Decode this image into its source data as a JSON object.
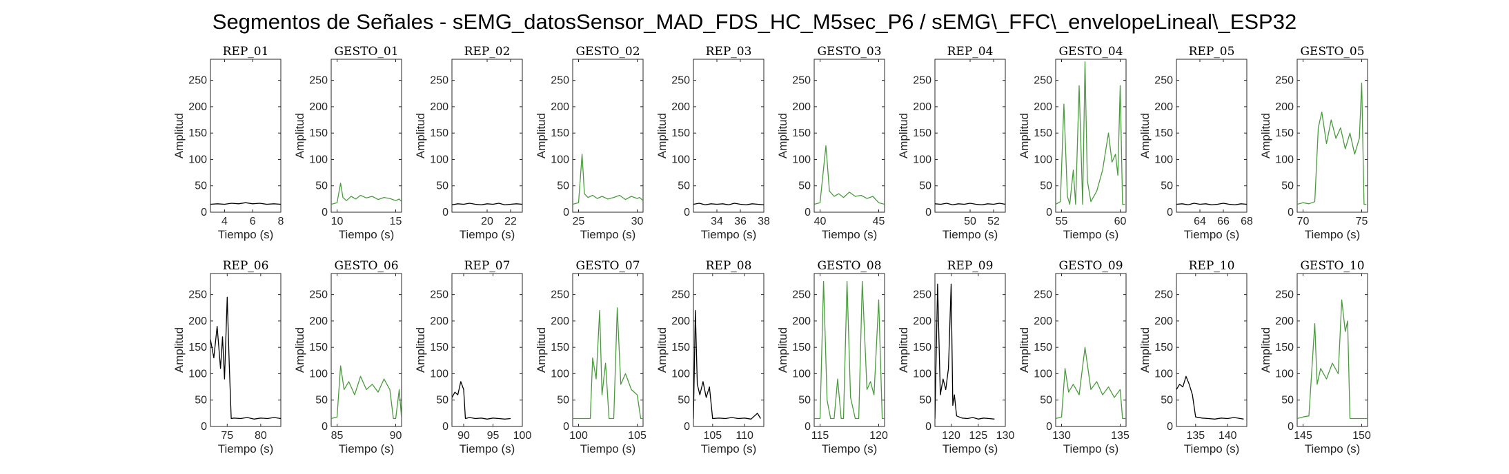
{
  "chart_data": {
    "type": "line",
    "title": "Segmentos de Señales - sEMG_datosSensor_MAD_FDS_HC_M5sec_P6 / sEMG\\_FFC\\_envelopeLineal\\_ESP32",
    "xlabel": "Tiempo (s)",
    "ylabel": "Amplitud",
    "ylim": [
      0,
      290
    ],
    "yticks": [
      0,
      50,
      100,
      150,
      200,
      250
    ],
    "grid": false,
    "colors": {
      "rep": "#000000",
      "gesto": "#4a9a3e",
      "axis": "#262626"
    },
    "subplots": [
      {
        "title": "REP_01",
        "kind": "rep",
        "xlim": [
          3,
          8
        ],
        "xticks": [
          4,
          6,
          8
        ],
        "series": [
          {
            "x": [
              3,
              3.5,
              4,
              4.5,
              5,
              5.5,
              6,
              6.5,
              7,
              7.5,
              8
            ],
            "y": [
              15,
              16,
              15,
              17,
              16,
              18,
              16,
              17,
              15,
              16,
              15
            ]
          }
        ]
      },
      {
        "title": "GESTO_01",
        "kind": "gesto",
        "xlim": [
          9.5,
          15.5
        ],
        "xticks": [
          10,
          15
        ],
        "series": [
          {
            "x": [
              9.5,
              10,
              10.3,
              10.5,
              10.8,
              11.2,
              11.6,
              12,
              12.5,
              13,
              13.5,
              14,
              14.5,
              15,
              15.3,
              15.5
            ],
            "y": [
              15,
              18,
              55,
              28,
              22,
              30,
              25,
              32,
              27,
              30,
              24,
              28,
              26,
              22,
              25,
              20
            ]
          }
        ]
      },
      {
        "title": "REP_02",
        "kind": "rep",
        "xlim": [
          17,
          23
        ],
        "xticks": [
          20,
          22
        ],
        "series": [
          {
            "x": [
              17,
              17.5,
              18,
              18.5,
              19,
              19.5,
              20,
              20.5,
              21,
              21.5,
              22,
              22.5,
              23
            ],
            "y": [
              14,
              16,
              15,
              17,
              15,
              14,
              16,
              15,
              17,
              14,
              15,
              16,
              15
            ]
          }
        ]
      },
      {
        "title": "GESTO_02",
        "kind": "gesto",
        "xlim": [
          24.5,
          30.5
        ],
        "xticks": [
          25,
          30
        ],
        "series": [
          {
            "x": [
              24.5,
              25,
              25.3,
              25.5,
              25.8,
              26.2,
              26.6,
              27,
              27.5,
              28,
              28.5,
              29,
              29.5,
              30,
              30.2,
              30.5
            ],
            "y": [
              15,
              18,
              110,
              35,
              28,
              32,
              26,
              30,
              25,
              28,
              32,
              24,
              30,
              26,
              28,
              22
            ]
          }
        ]
      },
      {
        "title": "REP_03",
        "kind": "rep",
        "xlim": [
          32,
          38
        ],
        "xticks": [
          34,
          36,
          38
        ],
        "series": [
          {
            "x": [
              32,
              32.5,
              33,
              33.5,
              34,
              34.5,
              35,
              35.5,
              36,
              36.5,
              37,
              37.5,
              38
            ],
            "y": [
              15,
              17,
              14,
              16,
              15,
              16,
              14,
              17,
              15,
              14,
              16,
              15,
              14
            ]
          }
        ]
      },
      {
        "title": "GESTO_03",
        "kind": "gesto",
        "xlim": [
          39.5,
          45.5
        ],
        "xticks": [
          40,
          45
        ],
        "series": [
          {
            "x": [
              39.5,
              40,
              40.5,
              40.8,
              41.2,
              41.6,
              42,
              42.5,
              43,
              43.5,
              44,
              44.5,
              45,
              45.5
            ],
            "y": [
              15,
              18,
              126,
              40,
              30,
              35,
              28,
              38,
              30,
              32,
              26,
              30,
              18,
              15
            ]
          }
        ]
      },
      {
        "title": "REP_04",
        "kind": "rep",
        "xlim": [
          47,
          53
        ],
        "xticks": [
          50,
          52
        ],
        "series": [
          {
            "x": [
              47,
              47.5,
              48,
              48.5,
              49,
              49.5,
              50,
              50.5,
              51,
              51.5,
              52,
              52.5,
              53
            ],
            "y": [
              16,
              15,
              17,
              14,
              16,
              15,
              17,
              15,
              14,
              16,
              15,
              17,
              15
            ]
          }
        ]
      },
      {
        "title": "GESTO_04",
        "kind": "gesto",
        "xlim": [
          54.5,
          60.5
        ],
        "xticks": [
          55,
          60
        ],
        "series": [
          {
            "x": [
              54.5,
              54.9,
              55.2,
              55.5,
              55.7,
              56,
              56.2,
              56.5,
              56.8,
              57,
              57.2,
              57.5,
              58,
              58.5,
              59,
              59.3,
              59.6,
              59.8,
              60,
              60.2,
              60.4
            ],
            "y": [
              15,
              20,
              205,
              30,
              15,
              80,
              15,
              240,
              15,
              285,
              60,
              20,
              40,
              80,
              150,
              95,
              110,
              70,
              240,
              15,
              15
            ]
          }
        ]
      },
      {
        "title": "REP_05",
        "kind": "rep",
        "xlim": [
          62,
          68
        ],
        "xticks": [
          64,
          66,
          68
        ],
        "series": [
          {
            "x": [
              62,
              62.5,
              63,
              63.5,
              64,
              64.5,
              65,
              65.5,
              66,
              66.5,
              67,
              67.5,
              68
            ],
            "y": [
              15,
              16,
              14,
              17,
              15,
              16,
              14,
              15,
              17,
              15,
              14,
              16,
              15
            ]
          }
        ]
      },
      {
        "title": "GESTO_05",
        "kind": "gesto",
        "xlim": [
          69.5,
          75.5
        ],
        "xticks": [
          70,
          75
        ],
        "series": [
          {
            "x": [
              69.5,
              70,
              70.5,
              71,
              71.3,
              71.6,
              72,
              72.4,
              72.8,
              73.2,
              73.6,
              74,
              74.4,
              74.8,
              75,
              75.2,
              75.4
            ],
            "y": [
              15,
              18,
              16,
              20,
              160,
              190,
              130,
              175,
              140,
              160,
              120,
              150,
              110,
              140,
              245,
              15,
              15
            ]
          }
        ]
      },
      {
        "title": "REP_06",
        "kind": "rep",
        "xlim": [
          72.5,
          83
        ],
        "xticks": [
          75,
          80
        ],
        "series": [
          {
            "x": [
              72.5,
              73,
              73.5,
              74,
              74.3,
              74.6,
              75,
              75.3,
              75.6,
              76,
              77,
              78,
              79,
              80,
              81,
              82,
              83
            ],
            "y": [
              165,
              130,
              190,
              110,
              170,
              90,
              245,
              120,
              15,
              16,
              15,
              17,
              14,
              16,
              15,
              17,
              15
            ]
          }
        ]
      },
      {
        "title": "GESTO_06",
        "kind": "gesto",
        "xlim": [
          84.5,
          90.5
        ],
        "xticks": [
          85,
          90
        ],
        "series": [
          {
            "x": [
              84.5,
              85,
              85.3,
              85.6,
              86,
              86.5,
              87,
              87.5,
              88,
              88.5,
              89,
              89.5,
              89.8,
              90,
              90.3,
              90.5
            ],
            "y": [
              15,
              18,
              115,
              70,
              85,
              60,
              95,
              70,
              80,
              65,
              90,
              70,
              15,
              15,
              70,
              15
            ]
          }
        ]
      },
      {
        "title": "REP_07",
        "kind": "rep",
        "xlim": [
          88,
          100
        ],
        "xticks": [
          90,
          95,
          100
        ],
        "series": [
          {
            "x": [
              88,
              88.5,
              89,
              89.5,
              90,
              90.3,
              91,
              92,
              93,
              94,
              95,
              96,
              97,
              98
            ],
            "y": [
              55,
              65,
              60,
              85,
              70,
              15,
              17,
              15,
              16,
              14,
              16,
              15,
              14,
              15
            ]
          }
        ]
      },
      {
        "title": "GESTO_07",
        "kind": "gesto",
        "xlim": [
          99.5,
          105.5
        ],
        "xticks": [
          100,
          105
        ],
        "series": [
          {
            "x": [
              99.5,
              100,
              100.5,
              101,
              101.2,
              101.5,
              101.8,
              102,
              102.3,
              102.6,
              103,
              103.3,
              103.6,
              104,
              104.5,
              105,
              105.3,
              105.5
            ],
            "y": [
              15,
              15,
              15,
              15,
              130,
              90,
              220,
              60,
              120,
              15,
              15,
              225,
              80,
              100,
              70,
              60,
              15,
              15
            ]
          }
        ]
      },
      {
        "title": "REP_08",
        "kind": "rep",
        "xlim": [
          102,
          113
        ],
        "xticks": [
          105,
          110
        ],
        "series": [
          {
            "x": [
              102,
              102.3,
              102.6,
              103,
              103.5,
              104,
              104.5,
              105,
              106,
              107,
              108,
              109,
              110,
              111,
              112,
              112.5
            ],
            "y": [
              15,
              220,
              80,
              60,
              85,
              55,
              75,
              15,
              16,
              15,
              17,
              15,
              16,
              14,
              25,
              15
            ]
          }
        ]
      },
      {
        "title": "GESTO_08",
        "kind": "gesto",
        "xlim": [
          114.5,
          120.5
        ],
        "xticks": [
          115,
          120
        ],
        "series": [
          {
            "x": [
              114.5,
              115,
              115.3,
              115.6,
              115.9,
              116.2,
              116.5,
              116.8,
              117,
              117.3,
              117.6,
              118,
              118.3,
              118.6,
              119,
              119.3,
              119.6,
              120,
              120.3,
              120.5
            ],
            "y": [
              15,
              15,
              275,
              50,
              15,
              15,
              90,
              15,
              15,
              275,
              55,
              15,
              15,
              275,
              70,
              85,
              60,
              240,
              15,
              15
            ]
          }
        ]
      },
      {
        "title": "REP_09",
        "kind": "rep",
        "xlim": [
          117,
          130
        ],
        "xticks": [
          120,
          125,
          130
        ],
        "series": [
          {
            "x": [
              117,
              117.5,
              118,
              118.5,
              119,
              119.5,
              120,
              120.3,
              120.6,
              121,
              122,
              123,
              124,
              125,
              126,
              127,
              128
            ],
            "y": [
              15,
              270,
              60,
              90,
              70,
              110,
              270,
              40,
              60,
              20,
              16,
              15,
              17,
              14,
              16,
              15,
              14
            ]
          }
        ]
      },
      {
        "title": "GESTO_09",
        "kind": "gesto",
        "xlim": [
          129.5,
          135.5
        ],
        "xticks": [
          130,
          135
        ],
        "series": [
          {
            "x": [
              129.5,
              130,
              130.3,
              130.6,
              131,
              131.5,
              132,
              132.5,
              133,
              133.5,
              134,
              134.5,
              135,
              135.2,
              135.5
            ],
            "y": [
              15,
              18,
              110,
              65,
              80,
              60,
              150,
              70,
              85,
              60,
              75,
              55,
              70,
              15,
              15
            ]
          }
        ]
      },
      {
        "title": "REP_10",
        "kind": "rep",
        "xlim": [
          132,
          143
        ],
        "xticks": [
          135,
          140
        ],
        "series": [
          {
            "x": [
              132,
              132.5,
              133,
              133.5,
              134,
              134.5,
              135,
              136,
              137,
              138,
              139,
              140,
              141,
              142,
              142.5
            ],
            "y": [
              70,
              80,
              75,
              95,
              80,
              60,
              18,
              16,
              15,
              14,
              16,
              15,
              17,
              15,
              14
            ]
          }
        ]
      },
      {
        "title": "GESTO_10",
        "kind": "gesto",
        "xlim": [
          144.5,
          150.5
        ],
        "xticks": [
          145,
          150
        ],
        "series": [
          {
            "x": [
              144.5,
              145,
              145.5,
              146,
              146.2,
              146.5,
              147,
              147.5,
              148,
              148.3,
              148.6,
              148.8,
              149,
              149.5,
              150,
              150.5
            ],
            "y": [
              15,
              18,
              20,
              195,
              80,
              110,
              90,
              120,
              100,
              240,
              180,
              200,
              15,
              15,
              15,
              15
            ]
          }
        ]
      }
    ]
  }
}
